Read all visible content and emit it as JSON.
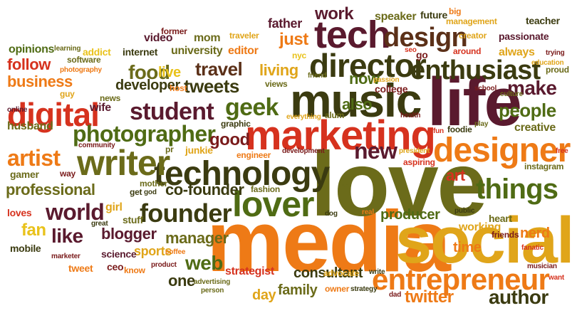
{
  "palette": {
    "darkred": "#7a1b1b",
    "red": "#d6321e",
    "orange": "#ee7a16",
    "gold": "#e0a51a",
    "yellow": "#e9c21b",
    "olive": "#6b6b1a",
    "green": "#4f6b14",
    "darkolive": "#3b3b10",
    "brown": "#5b3018",
    "plum": "#5a1a2e"
  },
  "words": [
    {
      "text": "media",
      "color": "orange"
    },
    {
      "text": "social",
      "color": "gold"
    },
    {
      "text": "love",
      "color": "olive"
    },
    {
      "text": "life",
      "color": "plum"
    },
    {
      "text": "music",
      "color": "darkolive"
    },
    {
      "text": "marketing",
      "color": "red"
    },
    {
      "text": "technology",
      "color": "darkolive"
    },
    {
      "text": "tech",
      "color": "plum"
    },
    {
      "text": "director",
      "color": "darkolive"
    },
    {
      "text": "designer",
      "color": "orange"
    },
    {
      "text": "writer",
      "color": "olive"
    },
    {
      "text": "lover",
      "color": "green"
    },
    {
      "text": "entrepreneur",
      "color": "orange"
    },
    {
      "text": "enthusiast",
      "color": "darkolive"
    },
    {
      "text": "digital",
      "color": "red"
    },
    {
      "text": "design",
      "color": "brown"
    },
    {
      "text": "founder",
      "color": "darkolive"
    },
    {
      "text": "things",
      "color": "green"
    },
    {
      "text": "photographer",
      "color": "green"
    },
    {
      "text": "student",
      "color": "plum"
    },
    {
      "text": "artist",
      "color": "orange"
    },
    {
      "text": "geek",
      "color": "green"
    },
    {
      "text": "world",
      "color": "plum"
    },
    {
      "text": "author",
      "color": "darkolive"
    },
    {
      "text": "new",
      "color": "plum"
    },
    {
      "text": "food",
      "color": "olive"
    },
    {
      "text": "tweets",
      "color": "darkolive"
    },
    {
      "text": "people",
      "color": "green"
    },
    {
      "text": "make",
      "color": "plum"
    },
    {
      "text": "travel",
      "color": "brown"
    },
    {
      "text": "producer",
      "color": "green"
    },
    {
      "text": "manager",
      "color": "olive"
    },
    {
      "text": "professional",
      "color": "olive"
    },
    {
      "text": "blogger",
      "color": "plum"
    },
    {
      "text": "follow",
      "color": "red"
    },
    {
      "text": "living",
      "color": "gold"
    },
    {
      "text": "just",
      "color": "orange"
    },
    {
      "text": "good",
      "color": "darkred"
    },
    {
      "text": "like",
      "color": "plum"
    },
    {
      "text": "fan",
      "color": "yellow"
    },
    {
      "text": "web",
      "color": "green"
    },
    {
      "text": "co-founder",
      "color": "darkolive"
    },
    {
      "text": "business",
      "color": "orange"
    },
    {
      "text": "developer",
      "color": "darkolive"
    },
    {
      "text": "work",
      "color": "plum"
    },
    {
      "text": "family",
      "color": "olive"
    },
    {
      "text": "twitter",
      "color": "orange"
    },
    {
      "text": "consultant",
      "color": "darkolive"
    },
    {
      "text": "art",
      "color": "red"
    },
    {
      "text": "now",
      "color": "green"
    },
    {
      "text": "also",
      "color": "green"
    },
    {
      "text": "time",
      "color": "orange"
    },
    {
      "text": "one",
      "color": "darkolive"
    },
    {
      "text": "day",
      "color": "gold"
    },
    {
      "text": "sports",
      "color": "gold"
    },
    {
      "text": "nerd",
      "color": "orange"
    },
    {
      "text": "creative",
      "color": "olive"
    },
    {
      "text": "always",
      "color": "gold"
    },
    {
      "text": "father",
      "color": "plum"
    },
    {
      "text": "speaker",
      "color": "olive"
    },
    {
      "text": "strategist",
      "color": "red"
    },
    {
      "text": "live",
      "color": "yellow"
    },
    {
      "text": "university",
      "color": "olive"
    },
    {
      "text": "editor",
      "color": "orange"
    },
    {
      "text": "mom",
      "color": "olive"
    },
    {
      "text": "video",
      "color": "plum"
    },
    {
      "text": "wife",
      "color": "plum"
    },
    {
      "text": "stuff",
      "color": "olive"
    },
    {
      "text": "science",
      "color": "plum"
    },
    {
      "text": "ceo",
      "color": "darkred"
    },
    {
      "text": "gamer",
      "color": "olive"
    },
    {
      "text": "husband",
      "color": "olive"
    },
    {
      "text": "girl",
      "color": "gold"
    },
    {
      "text": "loves",
      "color": "red"
    },
    {
      "text": "mobile",
      "color": "darkolive"
    },
    {
      "text": "tweet",
      "color": "orange"
    },
    {
      "text": "know",
      "color": "orange"
    },
    {
      "text": "fashion",
      "color": "olive"
    },
    {
      "text": "working",
      "color": "gold"
    },
    {
      "text": "heart",
      "color": "olive"
    },
    {
      "text": "friends",
      "color": "darkred"
    },
    {
      "text": "opinions",
      "color": "green"
    },
    {
      "text": "addict",
      "color": "yellow"
    },
    {
      "text": "internet",
      "color": "darkolive"
    },
    {
      "text": "software",
      "color": "olive"
    },
    {
      "text": "photography",
      "color": "orange"
    },
    {
      "text": "learning",
      "color": "olive"
    },
    {
      "text": "former",
      "color": "darkred"
    },
    {
      "text": "traveler",
      "color": "gold"
    },
    {
      "text": "nyc",
      "color": "yellow"
    },
    {
      "text": "views",
      "color": "olive"
    },
    {
      "text": "friend",
      "color": "olive"
    },
    {
      "text": "passion",
      "color": "gold"
    },
    {
      "text": "college",
      "color": "darkred"
    },
    {
      "text": "future",
      "color": "darkolive"
    },
    {
      "text": "big",
      "color": "orange"
    },
    {
      "text": "management",
      "color": "gold"
    },
    {
      "text": "teacher",
      "color": "darkolive"
    },
    {
      "text": "creator",
      "color": "gold"
    },
    {
      "text": "passionate",
      "color": "plum"
    },
    {
      "text": "around",
      "color": "red"
    },
    {
      "text": "education",
      "color": "gold"
    },
    {
      "text": "trying",
      "color": "darkred"
    },
    {
      "text": "proud",
      "color": "olive"
    },
    {
      "text": "seo",
      "color": "red"
    },
    {
      "text": "go",
      "color": "darkred"
    },
    {
      "text": "school",
      "color": "darkred"
    },
    {
      "text": "culture",
      "color": "olive"
    },
    {
      "text": "health",
      "color": "darkred"
    },
    {
      "text": "alum",
      "color": "olive"
    },
    {
      "text": "everything",
      "color": "gold"
    },
    {
      "text": "fun",
      "color": "red"
    },
    {
      "text": "foodie",
      "color": "darkolive"
    },
    {
      "text": "play",
      "color": "olive"
    },
    {
      "text": "free",
      "color": "red"
    },
    {
      "text": "instagram",
      "color": "olive"
    },
    {
      "text": "aspiring",
      "color": "red"
    },
    {
      "text": "president",
      "color": "gold"
    },
    {
      "text": "development",
      "color": "darkred"
    },
    {
      "text": "engineer",
      "color": "orange"
    },
    {
      "text": "junkie",
      "color": "gold"
    },
    {
      "text": "graphic",
      "color": "darkolive"
    },
    {
      "text": "community",
      "color": "darkred"
    },
    {
      "text": "pr",
      "color": "olive"
    },
    {
      "text": "online",
      "color": "plum"
    },
    {
      "text": "guy",
      "color": "gold"
    },
    {
      "text": "news",
      "color": "olive"
    },
    {
      "text": "host",
      "color": "orange"
    },
    {
      "text": "god",
      "color": "darkolive"
    },
    {
      "text": "get",
      "color": "darkolive"
    },
    {
      "text": "mother",
      "color": "olive"
    },
    {
      "text": "way",
      "color": "darkred"
    },
    {
      "text": "great",
      "color": "darkolive"
    },
    {
      "text": "marketer",
      "color": "darkred"
    },
    {
      "text": "coffee",
      "color": "orange"
    },
    {
      "text": "product",
      "color": "darkred"
    },
    {
      "text": "advertising",
      "color": "olive"
    },
    {
      "text": "person",
      "color": "olive"
    },
    {
      "text": "advocate",
      "color": "gold"
    },
    {
      "text": "write",
      "color": "darkolive"
    },
    {
      "text": "owner",
      "color": "orange"
    },
    {
      "text": "strategy",
      "color": "darkolive"
    },
    {
      "text": "dad",
      "color": "darkred"
    },
    {
      "text": "dog",
      "color": "darkolive"
    },
    {
      "text": "real",
      "color": "orange"
    },
    {
      "text": "tv",
      "color": "olive"
    },
    {
      "text": "public",
      "color": "darkolive"
    },
    {
      "text": "fanatic",
      "color": "red"
    },
    {
      "text": "musician",
      "color": "darkred"
    },
    {
      "text": "want",
      "color": "red"
    }
  ]
}
